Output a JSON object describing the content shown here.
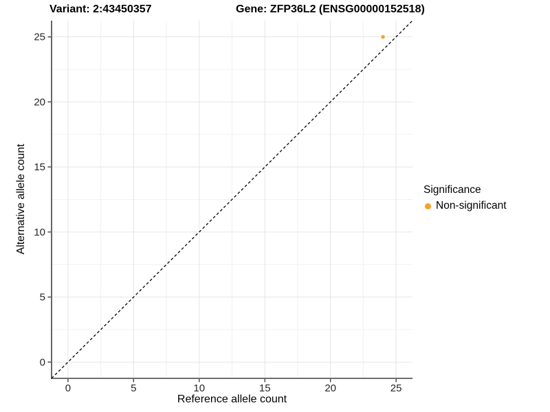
{
  "figure": {
    "title_variant": "Variant: 2:43450357",
    "title_gene": "Gene: ZFP36L2 (ENSG00000152518)"
  },
  "axes": {
    "xlabel": "Reference allele count",
    "ylabel": "Alternative allele count"
  },
  "legend": {
    "title": "Significance",
    "items": [
      {
        "label": "Non-significant",
        "color": "#F8A029"
      }
    ]
  },
  "chart_data": {
    "type": "scatter",
    "title": "Variant: 2:43450357    Gene: ZFP36L2 (ENSG00000152518)",
    "xlabel": "Reference allele count",
    "ylabel": "Alternative allele count",
    "xlim": [
      -1.25,
      26.25
    ],
    "ylim": [
      -1.25,
      26.25
    ],
    "xticks": [
      0,
      5,
      10,
      15,
      20,
      25
    ],
    "yticks": [
      0,
      5,
      10,
      15,
      20,
      25
    ],
    "grid": {
      "major": true,
      "minor": true
    },
    "legend_position": "right",
    "identity_line": {
      "style": "dashed",
      "equation": "y = x",
      "color": "#000000"
    },
    "series": [
      {
        "name": "Non-significant",
        "color": "#F8A029",
        "points": [
          [
            24,
            25
          ]
        ]
      }
    ]
  },
  "colors": {
    "background": "#FFFFFF",
    "grid_major": "#E4E4E4",
    "grid_minor": "#F1F1F1",
    "axis_line": "#3F3F3F",
    "tick_text": "#262626"
  }
}
